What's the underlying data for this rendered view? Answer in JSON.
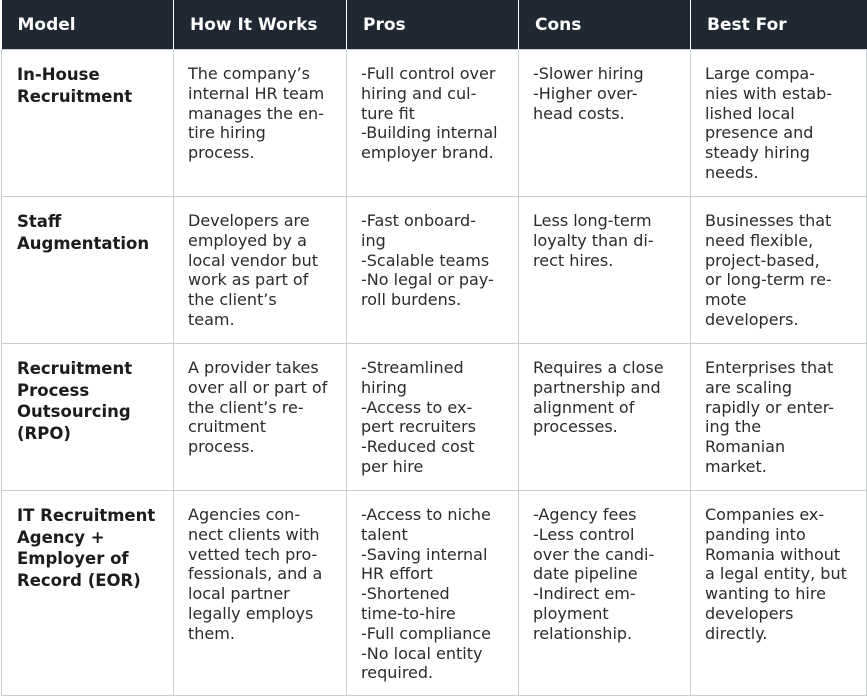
{
  "headers": [
    "Model",
    "How It Works",
    "Pros",
    "Cons",
    "Best For"
  ],
  "rows": [
    {
      "model": [
        "In-House",
        "Recruitment"
      ],
      "how": [
        "The company’s",
        "internal HR team",
        "manages the en-",
        "tire hiring",
        "process."
      ],
      "pros": [
        "-Full control over",
        "hiring and cul-",
        "ture fit",
        "-Building internal",
        "employer brand."
      ],
      "cons": [
        "-Slower hiring",
        "-Higher over-",
        "head costs."
      ],
      "best": [
        "Large compa-",
        "nies with estab-",
        "lished local",
        "presence and",
        "steady hiring",
        "needs."
      ]
    },
    {
      "model": [
        "Staff",
        "Augmentation"
      ],
      "how": [
        "Developers are",
        "employed by a",
        "local vendor but",
        "work as part of",
        "the client’s",
        "team."
      ],
      "pros": [
        "-Fast onboard-",
        "ing",
        "-Scalable teams",
        "-No legal or pay-",
        "roll burdens."
      ],
      "cons": [
        "Less long-term",
        "loyalty than di-",
        "rect hires."
      ],
      "best": [
        "Businesses that",
        "need flexible,",
        "project-based,",
        "or long-term re-",
        "mote",
        "developers."
      ]
    },
    {
      "model": [
        "Recruitment",
        "Process",
        "Outsourcing",
        "(RPO)"
      ],
      "how": [
        "A provider takes",
        "over all or part of",
        "the client’s re-",
        "cruitment",
        "process."
      ],
      "pros": [
        "-Streamlined",
        "hiring",
        "-Access to ex-",
        "pert recruiters",
        "-Reduced cost",
        "per hire"
      ],
      "cons": [
        "Requires a close",
        "partnership and",
        "alignment of",
        "processes."
      ],
      "best": [
        "Enterprises that",
        "are scaling",
        "rapidly or enter-",
        "ing the",
        "Romanian",
        "market."
      ]
    },
    {
      "model": [
        "IT Recruitment",
        "Agency +",
        "Employer of",
        "Record (EOR)"
      ],
      "how": [
        "Agencies con-",
        "nect clients with",
        "vetted tech pro-",
        "fessionals, and a",
        "local partner",
        "legally employs",
        "them."
      ],
      "pros": [
        "-Access to niche",
        "talent",
        "-Saving internal",
        "HR effort",
        "-Shortened",
        "time-to-hire",
        "-Full compliance",
        "-No local entity",
        "required."
      ],
      "cons": [
        "-Agency fees",
        "-Less control",
        "over the candi-",
        "date pipeline",
        "-Indirect em-",
        "ployment",
        "relationship."
      ],
      "best": [
        "Companies ex-",
        "panding into",
        "Romania without",
        "a legal entity, but",
        "wanting to hire",
        "developers",
        "directly."
      ]
    }
  ]
}
